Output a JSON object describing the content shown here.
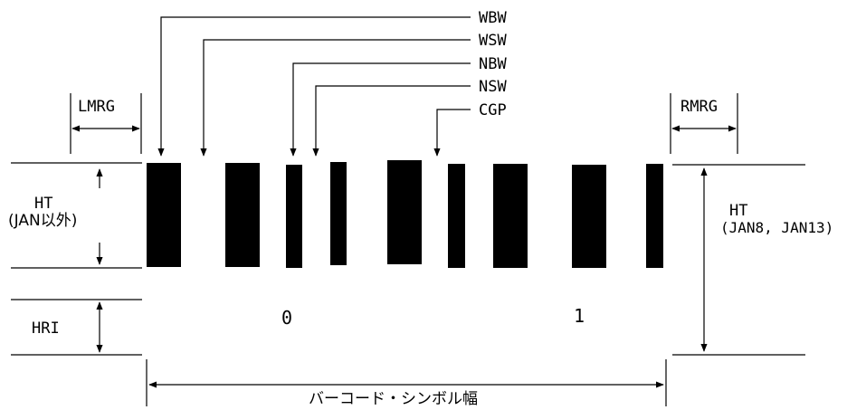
{
  "top_labels": {
    "wbw": "WBW",
    "wsw": "WSW",
    "nbw": "NBW",
    "nsw": "NSW",
    "cgp": "CGP"
  },
  "margin_labels": {
    "left": "LMRG",
    "right": "RMRG"
  },
  "height_labels": {
    "ht_left": "HT",
    "ht_left_sub": "(JAN以外)",
    "hri": "HRI",
    "ht_right": "HT",
    "ht_right_sub": "(JAN8, JAN13)"
  },
  "digits": [
    "0",
    "1"
  ],
  "bottom_label": "バーコード・シンボル幅",
  "colors": {
    "bar": "#000000",
    "background": "#ffffff"
  }
}
